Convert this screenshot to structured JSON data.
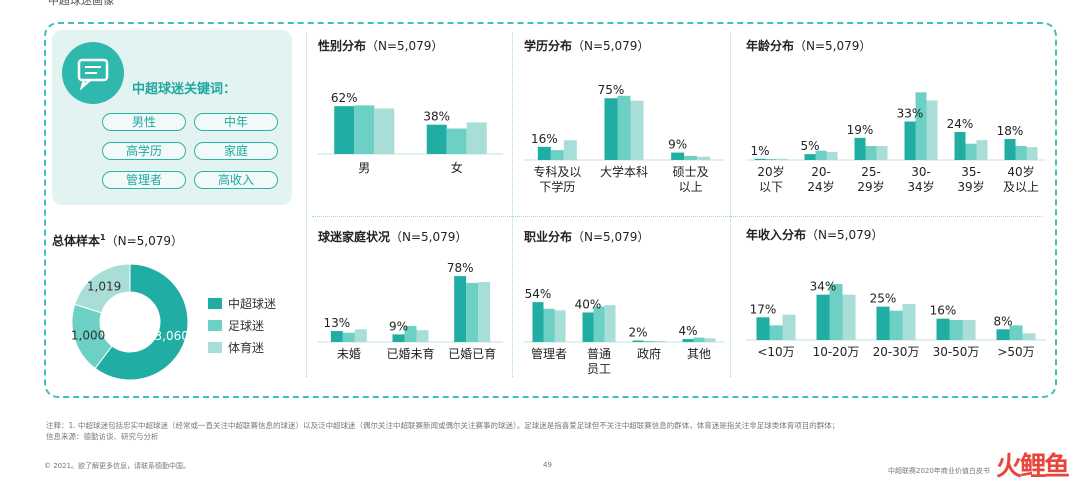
{
  "top_cut_title": "中超球迷画像",
  "keywords": {
    "title": "中超球迷关键词：",
    "items": [
      "男性",
      "中年",
      "高学历",
      "家庭",
      "管理者",
      "高收入"
    ]
  },
  "colors": {
    "csl": "#20ada3",
    "football": "#6dd0c5",
    "sports": "#a9ddd8"
  },
  "legend": [
    "中超球迷",
    "足球迷",
    "体育迷"
  ],
  "sample": {
    "title": "总体样本",
    "sup": "1",
    "n": "（N=5,079）",
    "values": [
      3060,
      1000,
      1019
    ],
    "labels": [
      "3,060",
      "1,000",
      "1,019"
    ]
  },
  "chart_data": [
    {
      "id": "gender",
      "type": "bar",
      "title": "性别分布",
      "n": "（N=5,079）",
      "categories": [
        "男",
        "女"
      ],
      "series": [
        {
          "name": "中超球迷",
          "values": [
            62,
            38
          ]
        },
        {
          "name": "足球迷",
          "values": [
            63,
            33
          ]
        },
        {
          "name": "体育迷",
          "values": [
            59,
            41
          ]
        }
      ],
      "labels": [
        "62%",
        "38%"
      ],
      "ylim": [
        0,
        70
      ]
    },
    {
      "id": "education",
      "type": "bar",
      "title": "学历分布",
      "n": "（N=5,079）",
      "categories": [
        "专科及以\n下学历",
        "大学本科",
        "硕士及\n以上"
      ],
      "series": [
        {
          "name": "中超球迷",
          "values": [
            16,
            75,
            9
          ]
        },
        {
          "name": "足球迷",
          "values": [
            12,
            78,
            5
          ]
        },
        {
          "name": "体育迷",
          "values": [
            24,
            72,
            4
          ]
        }
      ],
      "labels": [
        "16%",
        "75%",
        "9%"
      ],
      "ylim": [
        0,
        85
      ]
    },
    {
      "id": "age",
      "type": "bar",
      "title": "年龄分布",
      "n": "（N=5,079）",
      "categories": [
        "20岁\n以下",
        "20-\n24岁",
        "25-\n29岁",
        "30-\n34岁",
        "35-\n39岁",
        "40岁\n及以上"
      ],
      "series": [
        {
          "name": "中超球迷",
          "values": [
            1,
            5,
            19,
            33,
            24,
            18
          ]
        },
        {
          "name": "足球迷",
          "values": [
            0.5,
            8,
            12,
            58,
            14,
            12
          ]
        },
        {
          "name": "体育迷",
          "values": [
            1,
            7,
            12,
            51,
            17,
            11
          ]
        }
      ],
      "labels": [
        "1%",
        "5%",
        "19%",
        "33%",
        "24%",
        "18%"
      ],
      "ylim": [
        0,
        60
      ]
    },
    {
      "id": "family",
      "type": "bar",
      "title": "球迷家庭状况",
      "n": "（N=5,079）",
      "categories": [
        "未婚",
        "已婚未育",
        "已婚已育"
      ],
      "series": [
        {
          "name": "中超球迷",
          "values": [
            13,
            9,
            78
          ]
        },
        {
          "name": "足球迷",
          "values": [
            11,
            19,
            70
          ]
        },
        {
          "name": "体育迷",
          "values": [
            15,
            14,
            71
          ]
        }
      ],
      "labels": [
        "13%",
        "9%",
        "78%"
      ],
      "ylim": [
        0,
        90
      ]
    },
    {
      "id": "job",
      "type": "bar",
      "title": "职业分布",
      "n": "（N=5,079）",
      "categories": [
        "管理者",
        "普通\n员工",
        "政府",
        "其他"
      ],
      "series": [
        {
          "name": "中超球迷",
          "values": [
            54,
            40,
            2,
            4
          ]
        },
        {
          "name": "足球迷",
          "values": [
            45,
            48,
            1,
            6
          ]
        },
        {
          "name": "体育迷",
          "values": [
            43,
            50,
            1,
            5
          ]
        }
      ],
      "labels": [
        "54%",
        "40%",
        "2%",
        "4%"
      ],
      "ylim": [
        0,
        65
      ]
    },
    {
      "id": "income",
      "type": "bar",
      "title": "年收入分布",
      "n": "（N=5,079）",
      "categories": [
        "<10万",
        "10-20万",
        "20-30万",
        "30-50万",
        ">50万"
      ],
      "series": [
        {
          "name": "中超球迷",
          "values": [
            17,
            34,
            25,
            16,
            8
          ]
        },
        {
          "name": "足球迷",
          "values": [
            11,
            42,
            22,
            15,
            11
          ]
        },
        {
          "name": "体育迷",
          "values": [
            19,
            34,
            27,
            15,
            5
          ]
        }
      ],
      "labels": [
        "17%",
        "34%",
        "25%",
        "16%",
        "8%"
      ],
      "ylim": [
        0,
        45
      ]
    }
  ],
  "notes": {
    "line1": "注释：1. 中超球迷包括忠实中超球迷（经常或一直关注中超联赛信息的球迷）以及泛中超球迷（偶尔关注中超联赛新闻或偶尔关注赛事的球迷）。足球迷是指喜爱足球但不关注中超联赛信息的群体，体育迷是指关注非足球类体育项目的群体；",
    "line2": "信息来源：德勤访谈、研究与分析"
  },
  "footer": {
    "left": "© 2021。欲了解更多信息，请联系德勤中国。",
    "page": "49",
    "right": "中超联赛2020年商业价值白皮书"
  },
  "brand": "火鲤鱼"
}
